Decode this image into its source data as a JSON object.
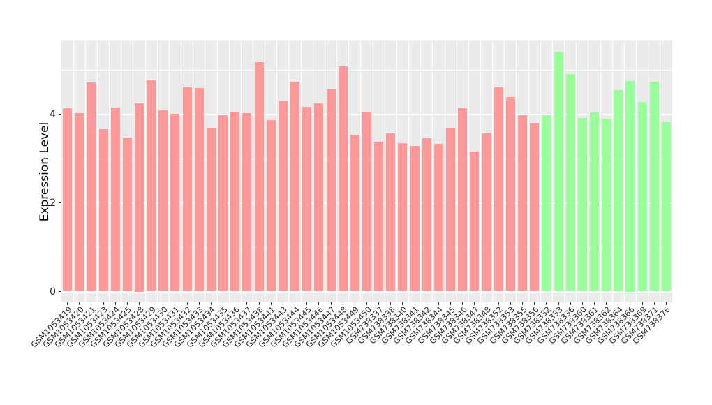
{
  "chart_data": {
    "type": "bar",
    "title": "",
    "xlabel": "",
    "ylabel": "Expression Level",
    "ytick_labels": [
      "0",
      "2",
      "4"
    ],
    "yticks": [
      0,
      2,
      4
    ],
    "yticks_minor": [
      1,
      3,
      5
    ],
    "ylim": [
      0,
      5.66
    ],
    "legend_position": "none",
    "grid": "horizontal major/minor white lines and vertical white separators on gray panel",
    "panel_background": "#EBEBEB",
    "gridline_color": "#FFFFFF",
    "categories": [
      "GSM1053419",
      "GSM1053420",
      "GSM1053421",
      "GSM1053423",
      "GSM1053424",
      "GSM1053425",
      "GSM1053428",
      "GSM1053429",
      "GSM1053430",
      "GSM1053431",
      "GSM1053432",
      "GSM1053433",
      "GSM1053434",
      "GSM1053435",
      "GSM1053436",
      "GSM1053437",
      "GSM1053438",
      "GSM1053441",
      "GSM1053443",
      "GSM1053444",
      "GSM1053445",
      "GSM1053446",
      "GSM1053447",
      "GSM1053448",
      "GSM1053449",
      "GSM1053450",
      "GSM738337",
      "GSM738338",
      "GSM738340",
      "GSM738341",
      "GSM738342",
      "GSM738344",
      "GSM738345",
      "GSM738346",
      "GSM738347",
      "GSM738348",
      "GSM738352",
      "GSM738353",
      "GSM738355",
      "GSM738356",
      "GSM738332",
      "GSM738333",
      "GSM738336",
      "GSM738360",
      "GSM738361",
      "GSM738362",
      "GSM738364",
      "GSM738366",
      "GSM738369",
      "GSM738371",
      "GSM738376"
    ],
    "values": [
      4.13,
      4.02,
      4.72,
      3.66,
      4.15,
      3.47,
      4.25,
      4.77,
      4.09,
      4.01,
      4.6,
      4.59,
      3.67,
      3.97,
      4.05,
      4.03,
      5.18,
      3.86,
      4.31,
      4.74,
      4.17,
      4.24,
      4.56,
      5.08,
      3.54,
      4.05,
      3.38,
      3.56,
      3.35,
      3.28,
      3.46,
      3.33,
      3.67,
      4.13,
      3.16,
      3.57,
      4.6,
      4.38,
      3.98,
      3.81,
      3.97,
      5.41,
      4.9,
      3.92,
      4.04,
      3.89,
      4.55,
      4.75,
      4.27,
      4.74,
      3.82
    ],
    "groups": [
      1,
      1,
      1,
      1,
      1,
      1,
      1,
      1,
      1,
      1,
      1,
      1,
      1,
      1,
      1,
      1,
      1,
      1,
      1,
      1,
      1,
      1,
      1,
      1,
      1,
      1,
      1,
      1,
      1,
      1,
      1,
      1,
      1,
      1,
      1,
      1,
      1,
      1,
      1,
      1,
      2,
      2,
      2,
      2,
      2,
      2,
      2,
      2,
      2,
      2,
      2
    ],
    "group_colors": {
      "1": "#FF9999",
      "2": "#99FF99"
    },
    "text_color": "#2B2B2B",
    "tick_color": "#333333"
  }
}
